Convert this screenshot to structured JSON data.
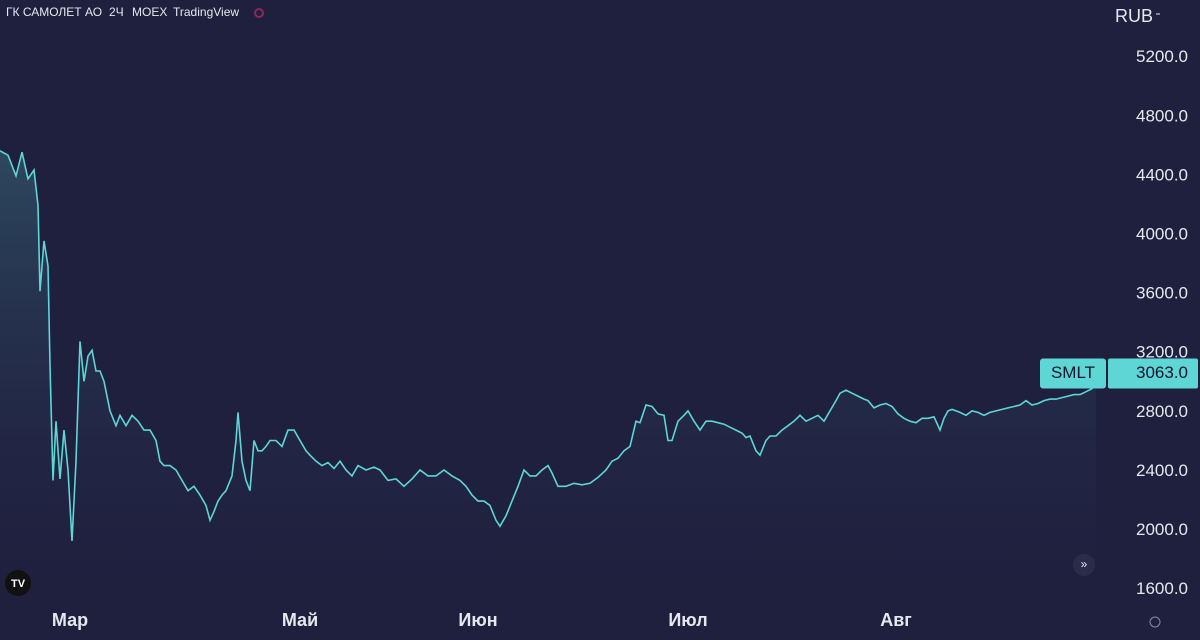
{
  "chart_data": {
    "type": "area",
    "title": "ГК САМОЛЕТ АО",
    "interval": "2Ч",
    "exchange": "MOEX",
    "source": "TradingView",
    "currency": "RUB",
    "x": [
      0,
      8,
      16,
      22,
      28,
      34,
      38,
      40,
      44,
      48,
      50,
      53,
      56,
      60,
      64,
      68,
      72,
      76,
      80,
      84,
      88,
      92,
      96,
      100,
      104,
      110,
      116,
      120,
      126,
      132,
      138,
      144,
      150,
      156,
      160,
      164,
      170,
      176,
      182,
      188,
      194,
      200,
      206,
      210,
      214,
      218,
      222,
      226,
      232,
      236,
      238,
      242,
      246,
      250,
      254,
      258,
      262,
      266,
      270,
      276,
      282,
      288,
      294,
      300,
      306,
      310,
      316,
      322,
      328,
      334,
      340,
      346,
      352,
      358,
      366,
      374,
      380,
      388,
      396,
      404,
      412,
      420,
      428,
      436,
      444,
      452,
      460,
      466,
      472,
      478,
      484,
      490,
      496,
      500,
      506,
      512,
      518,
      524,
      530,
      536,
      542,
      548,
      552,
      558,
      566,
      574,
      582,
      590,
      598,
      606,
      612,
      618,
      624,
      630,
      636,
      640,
      646,
      652,
      658,
      664,
      668,
      672,
      678,
      684,
      688,
      694,
      700,
      706,
      712,
      718,
      724,
      730,
      736,
      742,
      746,
      750,
      756,
      760,
      766,
      770,
      776,
      782,
      788,
      794,
      800,
      806,
      812,
      818,
      824,
      830,
      836,
      840,
      846,
      852,
      858,
      864,
      868,
      874,
      880,
      886,
      892,
      898,
      904,
      910,
      916,
      922,
      928,
      934,
      940,
      944,
      948,
      952,
      960,
      966,
      972,
      978,
      984,
      990,
      996,
      1002,
      1008,
      1014,
      1020,
      1026,
      1032,
      1038,
      1044,
      1050,
      1056,
      1062,
      1068,
      1074,
      1080,
      1086,
      1092,
      1096
    ],
    "series": [
      {
        "name": "SMLT",
        "color": "#5ed6d6",
        "values": [
          4570,
          4540,
          4400,
          4560,
          4380,
          4440,
          4200,
          3620,
          3960,
          3790,
          3120,
          2340,
          2740,
          2350,
          2680,
          2410,
          1930,
          2470,
          3280,
          3010,
          3180,
          3220,
          3080,
          3080,
          3010,
          2810,
          2710,
          2780,
          2710,
          2780,
          2740,
          2680,
          2680,
          2610,
          2470,
          2440,
          2440,
          2410,
          2340,
          2270,
          2300,
          2240,
          2170,
          2070,
          2130,
          2200,
          2240,
          2270,
          2370,
          2610,
          2800,
          2470,
          2340,
          2270,
          2610,
          2540,
          2540,
          2570,
          2610,
          2610,
          2570,
          2680,
          2680,
          2610,
          2540,
          2510,
          2470,
          2440,
          2460,
          2420,
          2470,
          2410,
          2370,
          2440,
          2410,
          2430,
          2410,
          2340,
          2350,
          2300,
          2350,
          2410,
          2370,
          2370,
          2410,
          2370,
          2340,
          2300,
          2240,
          2200,
          2200,
          2170,
          2070,
          2030,
          2100,
          2200,
          2300,
          2410,
          2370,
          2370,
          2410,
          2440,
          2390,
          2300,
          2300,
          2320,
          2310,
          2320,
          2360,
          2410,
          2470,
          2490,
          2540,
          2570,
          2740,
          2730,
          2850,
          2840,
          2790,
          2780,
          2610,
          2610,
          2740,
          2780,
          2810,
          2740,
          2680,
          2740,
          2740,
          2730,
          2720,
          2700,
          2680,
          2660,
          2630,
          2640,
          2540,
          2510,
          2610,
          2640,
          2640,
          2680,
          2710,
          2740,
          2780,
          2740,
          2760,
          2780,
          2740,
          2810,
          2880,
          2930,
          2950,
          2930,
          2910,
          2890,
          2880,
          2830,
          2850,
          2860,
          2840,
          2790,
          2760,
          2740,
          2730,
          2760,
          2760,
          2770,
          2680,
          2760,
          2810,
          2820,
          2800,
          2780,
          2810,
          2800,
          2780,
          2800,
          2810,
          2820,
          2830,
          2840,
          2850,
          2880,
          2850,
          2860,
          2880,
          2890,
          2890,
          2900,
          2910,
          2920,
          2920,
          2940,
          2960,
          3063
        ],
        "last_value_label": "3063.0"
      }
    ],
    "xlim": [
      0,
      1107
    ],
    "xticks": [
      {
        "value": 70,
        "label": "Мар"
      },
      {
        "value": 300,
        "label": "Май"
      },
      {
        "value": 478,
        "label": "Июн"
      },
      {
        "value": 688,
        "label": "Июл"
      },
      {
        "value": 896,
        "label": "Авг"
      }
    ],
    "ylim": [
      1490,
      5590
    ],
    "yticks": [
      {
        "value": 1600,
        "label": "1600.0"
      },
      {
        "value": 2000,
        "label": "2000.0"
      },
      {
        "value": 2400,
        "label": "2400.0"
      },
      {
        "value": 2800,
        "label": "2800.0"
      },
      {
        "value": 3200,
        "label": "3200.0"
      },
      {
        "value": 3600,
        "label": "3600.0"
      },
      {
        "value": 4000,
        "label": "4000.0"
      },
      {
        "value": 4400,
        "label": "4400.0"
      },
      {
        "value": 4800,
        "label": "4800.0"
      },
      {
        "value": 5200,
        "label": "5200.0"
      }
    ],
    "grid": false
  }
}
